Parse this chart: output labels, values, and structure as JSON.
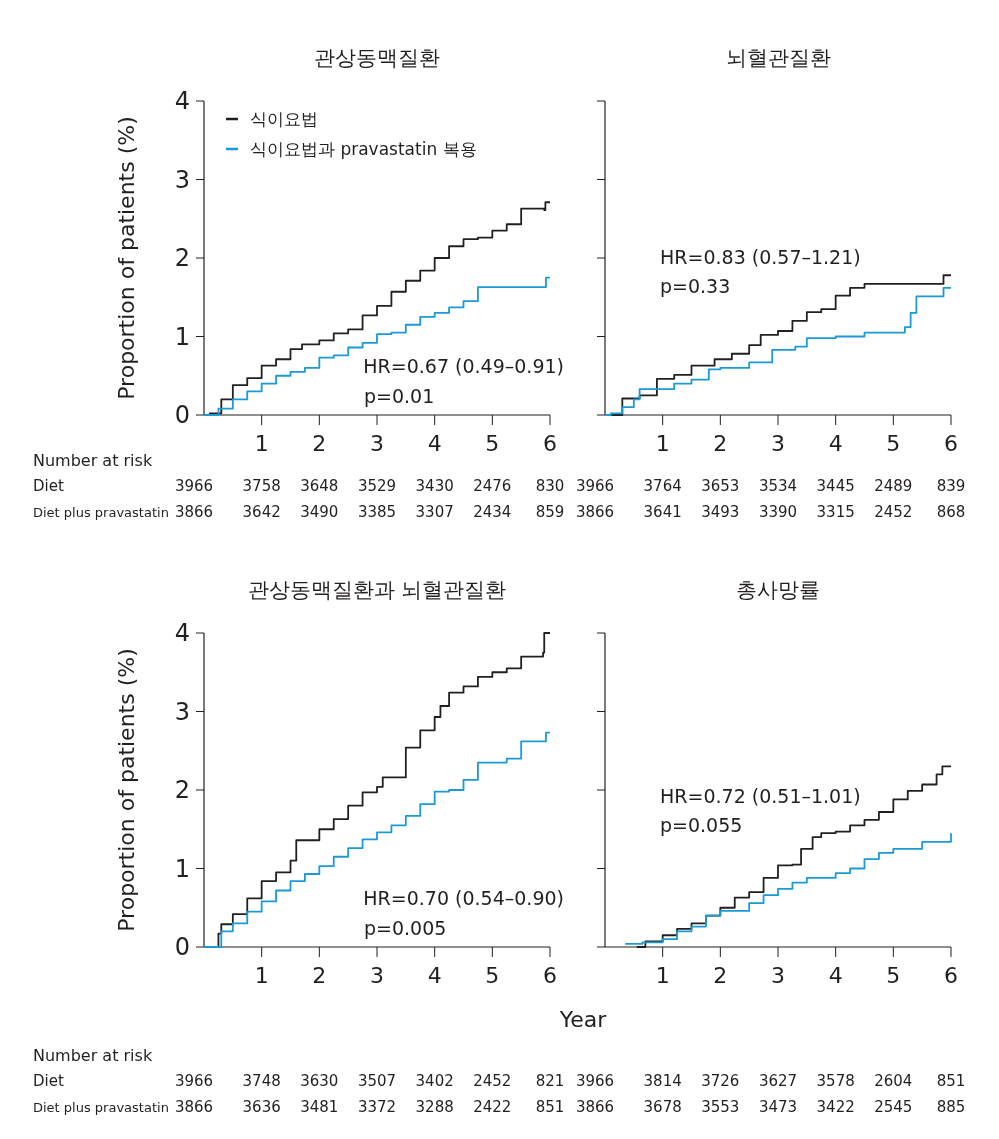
{
  "chart_data": [
    {
      "type": "step",
      "title": "관상동맥질환",
      "ylabel": "Proportion of patients (%)",
      "xlim": [
        0,
        6
      ],
      "xticks": [
        1,
        2,
        3,
        4,
        5,
        6
      ],
      "ylim": [
        0,
        4
      ],
      "yticks": [
        0,
        1,
        2,
        3,
        4
      ],
      "legend": "top left",
      "series": [
        {
          "name": "식이요법",
          "color": "#231f20",
          "x": [
            0,
            0.1,
            0.3,
            0.5,
            0.75,
            1,
            1.25,
            1.5,
            1.7,
            2,
            2.25,
            2.5,
            2.75,
            3,
            3.25,
            3.5,
            3.75,
            4,
            4.25,
            4.5,
            4.75,
            5,
            5.25,
            5.5,
            5.9,
            5.92,
            6
          ],
          "values": [
            0,
            0.02,
            0.2,
            0.38,
            0.47,
            0.63,
            0.71,
            0.84,
            0.9,
            0.95,
            1.04,
            1.09,
            1.27,
            1.39,
            1.57,
            1.71,
            1.84,
            2,
            2.15,
            2.24,
            2.26,
            2.35,
            2.43,
            2.63,
            2.61,
            2.71,
            2.71
          ]
        },
        {
          "name": "식이요법과 pravastatin 복용",
          "color": "#1a9ad6",
          "x": [
            0,
            0.25,
            0.5,
            0.75,
            1,
            1.25,
            1.5,
            1.75,
            2,
            2.25,
            2.5,
            2.75,
            3,
            3.25,
            3.5,
            3.75,
            4,
            4.25,
            4.5,
            4.75,
            5,
            5.5,
            5.92,
            5.93,
            6
          ],
          "values": [
            0,
            0.08,
            0.2,
            0.3,
            0.4,
            0.5,
            0.55,
            0.6,
            0.73,
            0.76,
            0.86,
            0.92,
            1.03,
            1.05,
            1.15,
            1.25,
            1.3,
            1.37,
            1.45,
            1.63,
            1.63,
            1.63,
            1.63,
            1.75,
            1.75
          ]
        }
      ],
      "annotations": [
        "HR=0.67 (0.49–0.91)",
        "p=0.01",
        "Number at risk",
        "Diet",
        "3966",
        "3758",
        "3648",
        "3529",
        "3430",
        "2476",
        "830",
        "Diet plus pravastatin",
        "3866",
        "3642",
        "3490",
        "3385",
        "3307",
        "2434",
        "859"
      ]
    },
    {
      "type": "step",
      "title": "뇌혈관질환",
      "xlim": [
        0,
        6
      ],
      "xticks": [
        1,
        2,
        3,
        4,
        5,
        6
      ],
      "ylim": [
        0,
        4
      ],
      "yticks": [
        0,
        1,
        2,
        3,
        4
      ],
      "tick_labels": "x",
      "series": [
        {
          "color": "#231f20",
          "x": [
            0,
            0.3,
            0.6,
            0.9,
            1.2,
            1.5,
            1.9,
            2.2,
            2.5,
            2.7,
            3,
            3.25,
            3.5,
            3.75,
            4,
            4.25,
            4.5,
            5,
            5.85,
            5.87,
            6
          ],
          "values": [
            0,
            0.21,
            0.25,
            0.46,
            0.51,
            0.63,
            0.71,
            0.78,
            0.89,
            1.02,
            1.07,
            1.2,
            1.31,
            1.35,
            1.52,
            1.62,
            1.67,
            1.67,
            1.67,
            1.78,
            1.78
          ]
        },
        {
          "color": "#1a9ad6",
          "x": [
            0,
            0.1,
            0.3,
            0.5,
            0.6,
            1,
            1.2,
            1.5,
            1.8,
            2,
            2.5,
            2.9,
            3.3,
            3.5,
            4,
            4.5,
            5,
            5.2,
            5.3,
            5.4,
            5.87,
            6
          ],
          "values": [
            0,
            0.02,
            0.1,
            0.2,
            0.33,
            0.33,
            0.4,
            0.45,
            0.58,
            0.6,
            0.67,
            0.83,
            0.87,
            0.98,
            1,
            1.05,
            1.05,
            1.12,
            1.3,
            1.51,
            1.62,
            1.62
          ]
        }
      ],
      "annotations": [
        "HR=0.83 (0.57–1.21)",
        "p=0.33",
        "3966",
        "3764",
        "3653",
        "3534",
        "3445",
        "2489",
        "839",
        "3866",
        "3641",
        "3493",
        "3390",
        "3315",
        "2452",
        "868"
      ]
    },
    {
      "type": "step",
      "title": "관상동맥질환과 뇌혈관질환",
      "ylabel": "Proportion of patients (%)",
      "xlabel": "Year",
      "xlim": [
        0,
        6
      ],
      "xticks": [
        1,
        2,
        3,
        4,
        5,
        6
      ],
      "ylim": [
        0,
        4
      ],
      "yticks": [
        0,
        1,
        2,
        3,
        4
      ],
      "series": [
        {
          "color": "#231f20",
          "x": [
            0,
            0.25,
            0.3,
            0.5,
            0.75,
            1,
            1.25,
            1.5,
            1.6,
            2,
            2.25,
            2.5,
            2.75,
            3,
            3.1,
            3.5,
            3.75,
            4,
            4.1,
            4.25,
            4.5,
            4.75,
            5,
            5.25,
            5.5,
            5.88,
            5.9,
            6
          ],
          "values": [
            0,
            0.17,
            0.29,
            0.42,
            0.62,
            0.84,
            0.95,
            1.1,
            1.36,
            1.5,
            1.63,
            1.8,
            1.97,
            2.04,
            2.16,
            2.54,
            2.76,
            2.93,
            3.07,
            3.24,
            3.32,
            3.44,
            3.5,
            3.55,
            3.7,
            3.75,
            4,
            4
          ]
        },
        {
          "color": "#1a9ad6",
          "x": [
            0,
            0.3,
            0.5,
            0.75,
            1,
            1.25,
            1.5,
            1.75,
            2,
            2.25,
            2.5,
            2.75,
            3,
            3.25,
            3.5,
            3.75,
            4,
            4.25,
            4.5,
            4.75,
            5,
            5.25,
            5.5,
            5.92,
            5.93,
            6
          ],
          "values": [
            0,
            0.2,
            0.3,
            0.45,
            0.58,
            0.72,
            0.84,
            0.93,
            1.03,
            1.15,
            1.26,
            1.37,
            1.46,
            1.55,
            1.67,
            1.82,
            1.98,
            2,
            2.13,
            2.35,
            2.35,
            2.4,
            2.62,
            2.62,
            2.73,
            2.73
          ]
        }
      ],
      "annotations": [
        "HR=0.70 (0.54–0.90)",
        "p=0.005",
        "Number at risk",
        "Diet",
        "3966",
        "3748",
        "3630",
        "3507",
        "3402",
        "2452",
        "821",
        "Diet plus pravastatin",
        "3866",
        "3636",
        "3481",
        "3372",
        "3288",
        "2422",
        "851"
      ]
    },
    {
      "type": "step",
      "title": "총사망률",
      "xlim": [
        0,
        6
      ],
      "xticks": [
        1,
        2,
        3,
        4,
        5,
        6
      ],
      "ylim": [
        0,
        4
      ],
      "yticks": [
        0,
        1,
        2,
        3,
        4
      ],
      "tick_labels": "x",
      "series": [
        {
          "color": "#231f20",
          "x": [
            0.55,
            0.7,
            1,
            1.25,
            1.5,
            1.75,
            2,
            2.25,
            2.5,
            2.75,
            3,
            3.25,
            3.4,
            3.6,
            3.75,
            4,
            4.25,
            4.5,
            4.75,
            5,
            5.25,
            5.5,
            5.75,
            5.85,
            6
          ],
          "values": [
            0,
            0.07,
            0.15,
            0.23,
            0.3,
            0.4,
            0.5,
            0.63,
            0.7,
            0.88,
            1.04,
            1.05,
            1.25,
            1.4,
            1.45,
            1.47,
            1.55,
            1.62,
            1.72,
            1.88,
            1.99,
            2.07,
            2.2,
            2.3,
            2.3
          ]
        },
        {
          "color": "#1a9ad6",
          "x": [
            0.35,
            0.65,
            1,
            1.25,
            1.5,
            1.75,
            2,
            2.5,
            2.75,
            3,
            3.25,
            3.5,
            4,
            4.25,
            4.5,
            4.75,
            5,
            5.5,
            5.95,
            6
          ],
          "values": [
            0.04,
            0.06,
            0.1,
            0.2,
            0.26,
            0.4,
            0.46,
            0.56,
            0.66,
            0.74,
            0.82,
            0.88,
            0.94,
            1,
            1.12,
            1.2,
            1.25,
            1.34,
            1.34,
            1.45
          ]
        }
      ],
      "annotations": [
        "HR=0.72 (0.51–1.01)",
        "p=0.055",
        "3966",
        "3814",
        "3726",
        "3627",
        "3578",
        "2604",
        "851",
        "3866",
        "3678",
        "3553",
        "3473",
        "3422",
        "2545",
        "885"
      ]
    }
  ]
}
